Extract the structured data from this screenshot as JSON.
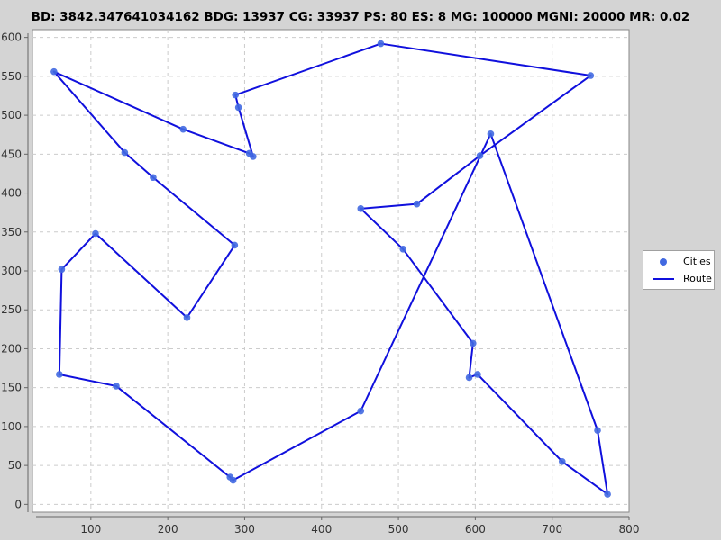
{
  "chart_data": {
    "type": "scatter",
    "title": "BD: 3842.347641034162    BDG: 13937    CG: 33937    PS: 80    ES: 8    MG: 100000    MGNI: 20000    MR: 0.02",
    "xlim": [
      24,
      800
    ],
    "ylim": [
      -10,
      610
    ],
    "x_ticks": [
      100,
      200,
      300,
      400,
      500,
      600,
      700,
      800
    ],
    "y_ticks": [
      0,
      50,
      100,
      150,
      200,
      250,
      300,
      350,
      400,
      450,
      500,
      550,
      600
    ],
    "grid": true,
    "legend": {
      "position": "right",
      "entries": [
        "Cities",
        "Route"
      ]
    },
    "series": [
      {
        "name": "Cities",
        "kind": "points",
        "color": "#4169e1",
        "points": [
          [
            477,
            592
          ],
          [
            750,
            551
          ],
          [
            620,
            476
          ],
          [
            606,
            448
          ],
          [
            524,
            386
          ],
          [
            451,
            380
          ],
          [
            506,
            328
          ],
          [
            597,
            207
          ],
          [
            603,
            167
          ],
          [
            592,
            163
          ],
          [
            713,
            55
          ],
          [
            772,
            13
          ],
          [
            759,
            95
          ],
          [
            451,
            120
          ],
          [
            285,
            31
          ],
          [
            281,
            35
          ],
          [
            133,
            152
          ],
          [
            59,
            167
          ],
          [
            62,
            302
          ],
          [
            106,
            348
          ],
          [
            225,
            240
          ],
          [
            287,
            333
          ],
          [
            181,
            420
          ],
          [
            144,
            452
          ],
          [
            52,
            556
          ],
          [
            220,
            482
          ],
          [
            306,
            451
          ],
          [
            311,
            447
          ],
          [
            292,
            510
          ],
          [
            288,
            526
          ]
        ]
      },
      {
        "name": "Route",
        "kind": "line",
        "color": "#1010dd",
        "closed": true,
        "points": [
          [
            477,
            592
          ],
          [
            750,
            551
          ],
          [
            606,
            448
          ],
          [
            524,
            386
          ],
          [
            451,
            380
          ],
          [
            506,
            328
          ],
          [
            597,
            207
          ],
          [
            592,
            163
          ],
          [
            603,
            167
          ],
          [
            713,
            55
          ],
          [
            772,
            13
          ],
          [
            759,
            95
          ],
          [
            620,
            476
          ],
          [
            451,
            120
          ],
          [
            285,
            31
          ],
          [
            281,
            35
          ],
          [
            133,
            152
          ],
          [
            59,
            167
          ],
          [
            62,
            302
          ],
          [
            106,
            348
          ],
          [
            225,
            240
          ],
          [
            287,
            333
          ],
          [
            181,
            420
          ],
          [
            144,
            452
          ],
          [
            52,
            556
          ],
          [
            220,
            482
          ],
          [
            306,
            451
          ],
          [
            311,
            447
          ],
          [
            292,
            510
          ],
          [
            288,
            526
          ]
        ]
      }
    ]
  }
}
